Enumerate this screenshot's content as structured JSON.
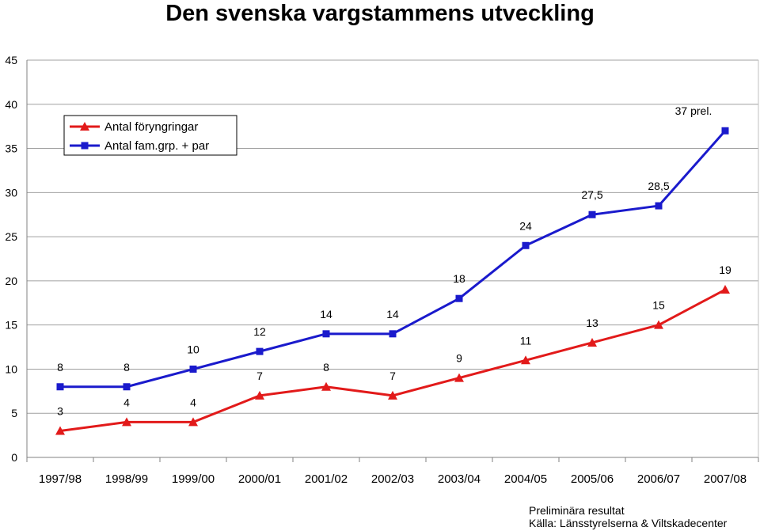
{
  "title": "Den svenska vargstammens utveckling",
  "footnote": {
    "line1": "Preliminära resultat",
    "line2": "Källa: Länsstyrelserna & Viltskadecenter"
  },
  "colors": {
    "red": "#e21a1a",
    "blue": "#1a1acc",
    "grid": "#a0a0a0"
  },
  "chart_data": {
    "type": "line",
    "title": "Den svenska vargstammens utveckling",
    "categories": [
      "1997/98",
      "1998/99",
      "1999/00",
      "2000/01",
      "2001/02",
      "2002/03",
      "2003/04",
      "2004/05",
      "2005/06",
      "2006/07",
      "2007/08"
    ],
    "ylim": [
      0,
      45
    ],
    "yticks": [
      0,
      5,
      10,
      15,
      20,
      25,
      30,
      35,
      40,
      45
    ],
    "grid": true,
    "legend_position": "top-left",
    "series": [
      {
        "name": "Antal föryngringar",
        "color": "#e21a1a",
        "marker": "triangle",
        "values": [
          3,
          4,
          4,
          7,
          8,
          7,
          9,
          11,
          13,
          15,
          19
        ],
        "labels": [
          "3",
          "4",
          "4",
          "7",
          "8",
          "7",
          "9",
          "11",
          "13",
          "15",
          "19"
        ]
      },
      {
        "name": "Antal fam.grp. + par",
        "color": "#1a1acc",
        "marker": "square",
        "values": [
          8,
          8,
          10,
          12,
          14,
          14,
          18,
          24,
          27.5,
          28.5,
          37
        ],
        "labels": [
          "8",
          "8",
          "10",
          "12",
          "14",
          "14",
          "18",
          "24",
          "27,5",
          "28,5",
          "37 prel."
        ]
      }
    ]
  }
}
